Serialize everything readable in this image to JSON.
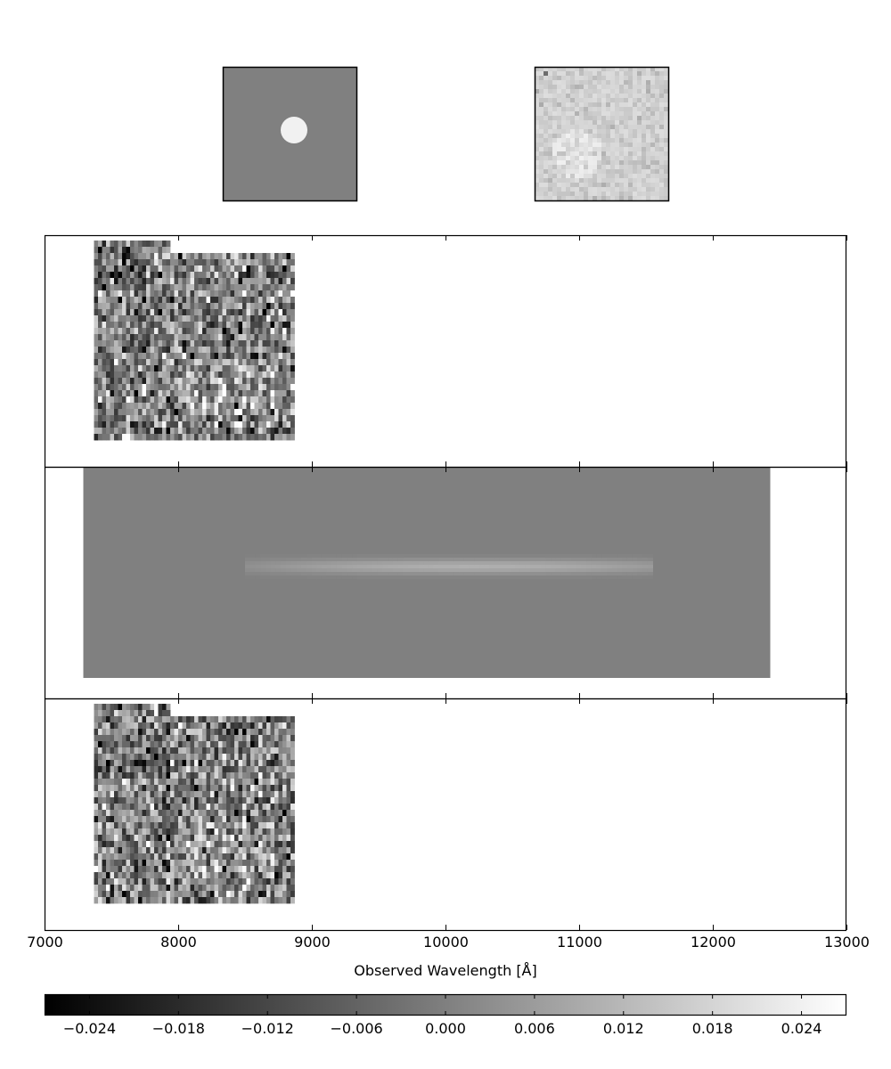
{
  "chart_data": {
    "type": "heatmap",
    "stamps": [
      {
        "name": "model-stamp",
        "background_value": 0.0,
        "source_peak": 0.024
      },
      {
        "name": "data-stamp",
        "background_value": 0.02
      }
    ],
    "panels": [
      {
        "name": "observed-2d-spectrum",
        "wavelength_range": [
          7370,
          8870
        ],
        "noise_sigma": 0.012
      },
      {
        "name": "model-2d-spectrum",
        "wavelength_range": [
          7290,
          12430
        ],
        "trace_range": [
          8500,
          11550
        ],
        "trace_peak": 0.01
      },
      {
        "name": "residual-2d-spectrum",
        "wavelength_range": [
          7370,
          8870
        ],
        "noise_sigma": 0.012
      }
    ],
    "x_axis": {
      "label": "Observed Wavelength [Å]",
      "xlim": [
        7000,
        13000
      ],
      "ticks": [
        7000,
        8000,
        9000,
        10000,
        11000,
        12000,
        13000
      ],
      "tick_labels": [
        "7000",
        "8000",
        "9000",
        "10000",
        "11000",
        "12000",
        "13000"
      ]
    },
    "colorbar": {
      "cmap": "gray",
      "vmin": -0.027,
      "vmax": 0.027,
      "ticks": [
        -0.024,
        -0.018,
        -0.012,
        -0.006,
        0.0,
        0.006,
        0.012,
        0.018,
        0.024
      ],
      "tick_labels": [
        "−0.024",
        "−0.018",
        "−0.012",
        "−0.006",
        "0.000",
        "0.006",
        "0.012",
        "0.018",
        "0.024"
      ]
    }
  }
}
